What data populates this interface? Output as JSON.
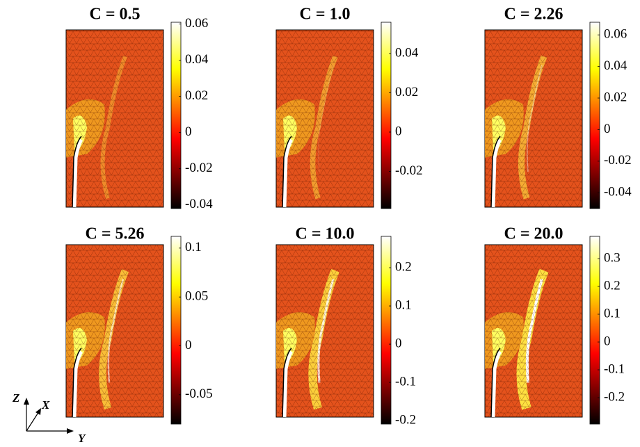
{
  "chart_data": [
    {
      "type": "field",
      "title": "C = 0.5",
      "ylim": [
        -0.042,
        0.061
      ],
      "yticks": [
        0.06,
        0.04,
        0.02,
        0,
        -0.02,
        -0.04
      ]
    },
    {
      "type": "field",
      "title": "C = 1.0",
      "ylim": [
        -0.039,
        0.056
      ],
      "yticks": [
        0.04,
        0.02,
        0,
        -0.02
      ]
    },
    {
      "type": "field",
      "title": "C = 2.26",
      "ylim": [
        -0.05,
        0.068
      ],
      "yticks": [
        0.06,
        0.04,
        0.02,
        0,
        -0.02,
        -0.04
      ]
    },
    {
      "type": "field",
      "title": "C = 5.26",
      "ylim": [
        -0.08,
        0.112
      ],
      "yticks": [
        0.1,
        0.05,
        0,
        -0.05
      ]
    },
    {
      "type": "field",
      "title": "C = 10.0",
      "ylim": [
        -0.209,
        0.282
      ],
      "yticks": [
        0.2,
        0.1,
        0,
        -0.1,
        -0.2
      ]
    },
    {
      "type": "field",
      "title": "C = 20.0",
      "ylim": [
        -0.295,
        0.38
      ],
      "yticks": [
        0.3,
        0.2,
        0.1,
        0,
        -0.1,
        -0.2
      ]
    }
  ],
  "orientation": {
    "z": "Z",
    "x": "X",
    "y": "Y"
  }
}
